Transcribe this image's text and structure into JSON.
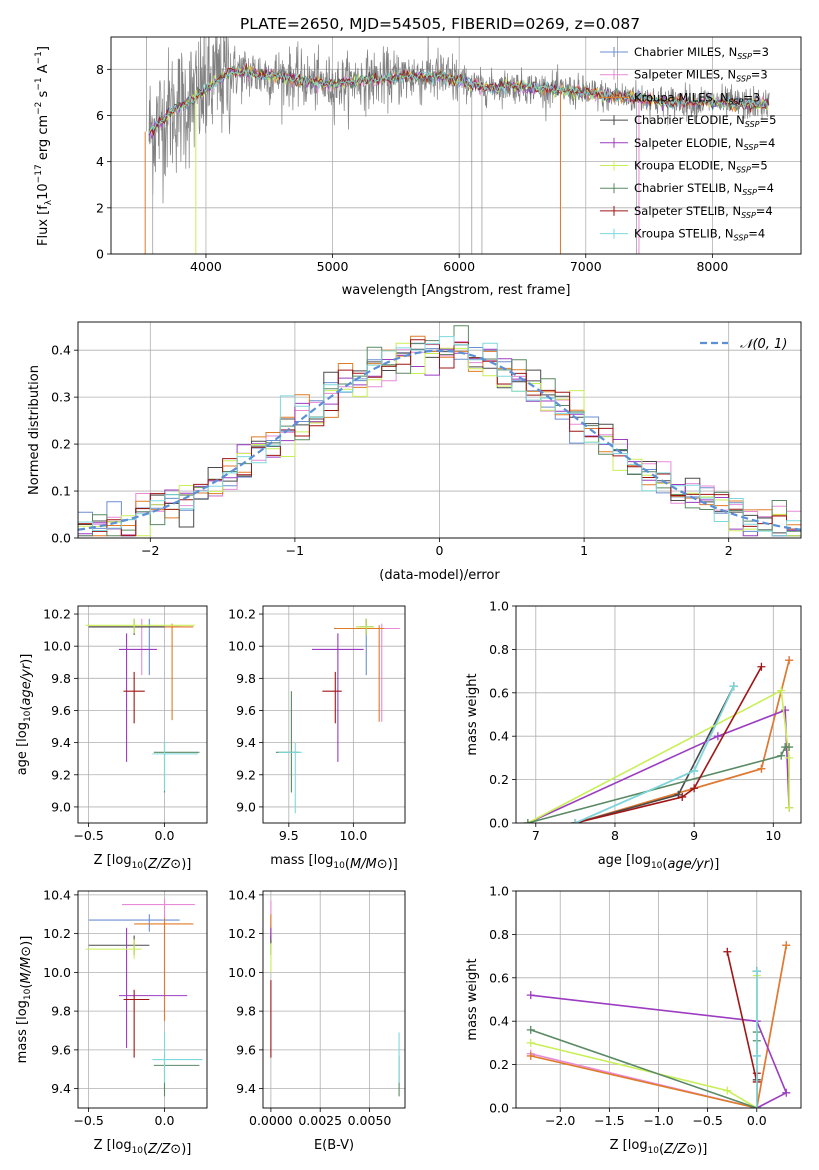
{
  "figure_title": "PLATE=2650, MJD=54505, FIBERID=0269, z=0.087",
  "colors": [
    "#6a8fd0",
    "#e88ad6",
    "#e07b28",
    "#4a4a4a",
    "#9b3cc1",
    "#c9ef57",
    "#5a8a64",
    "#a01616",
    "#7dd9dc"
  ],
  "model_names": [
    "Chabrier MILES, N_SSP=3",
    "Salpeter MILES, N_SSP=3",
    "Kroupa MILES, N_SSP=3",
    "Chabrier ELODIE, N_SSP=5",
    "Salpeter ELODIE, N_SSP=4",
    "Kroupa ELODIE, N_SSP=5",
    "Chabrier STELIB, N_SSP=4",
    "Salpeter STELIB, N_SSP=4",
    "Kroupa STELIB, N_SSP=4"
  ],
  "chart_data": [
    {
      "id": "spectrum",
      "type": "line",
      "xlabel": "wavelength [Angstrom, rest frame]",
      "ylabel_parts": [
        "Flux [f",
        "λ",
        "10",
        "−17",
        " erg cm",
        "−2",
        " s",
        "−1",
        " A",
        "−1",
        "]"
      ],
      "xlim": [
        3250,
        8700
      ],
      "ylim": [
        0,
        9.4
      ],
      "xticks": [
        4000,
        5000,
        6000,
        7000,
        8000
      ],
      "yticks": [
        0,
        2,
        4,
        6,
        8
      ],
      "data_color": "#808080",
      "continuum": {
        "x": [
          3550,
          3600,
          3700,
          3800,
          3900,
          4000,
          4100,
          4200,
          4400,
          4600,
          4800,
          5000,
          5200,
          5400,
          5600,
          5800,
          6000,
          6200,
          6400,
          6600,
          6800,
          7000,
          7200,
          7400,
          7600,
          7800,
          8000,
          8200,
          8400
        ],
        "y": [
          5.3,
          5.5,
          6.1,
          6.4,
          6.7,
          7.1,
          7.6,
          7.9,
          7.8,
          7.7,
          7.5,
          7.3,
          7.5,
          7.6,
          7.7,
          7.7,
          7.5,
          7.2,
          7.3,
          7.2,
          7.1,
          7.0,
          6.8,
          6.8,
          6.6,
          6.6,
          6.6,
          6.5,
          6.5
        ]
      },
      "legend_labels": [
        "Chabrier MILES, N",
        "Salpeter MILES, N",
        "Kroupa MILES, N",
        "Chabrier ELODIE, N",
        "Salpeter ELODIE, N",
        "Kroupa ELODIE, N",
        "Chabrier STELIB, N",
        "Salpeter STELIB, N",
        "Kroupa STELIB, N"
      ],
      "legend_sub": "SSP",
      "legend_vals": [
        "=3",
        "=3",
        "=3",
        "=5",
        "=4",
        "=5",
        "=4",
        "=4",
        "=4"
      ],
      "legend_position": "upper-right"
    },
    {
      "id": "residuals",
      "type": "histogram",
      "xlabel": "(data-model)/error",
      "ylabel": "Normed distribution",
      "xlim": [
        -2.5,
        2.5
      ],
      "ylim": [
        0,
        0.46
      ],
      "xticks": [
        -2,
        -1,
        0,
        1,
        2
      ],
      "yticks": [
        0.0,
        0.1,
        0.2,
        0.3,
        0.4
      ],
      "legend_label": "𝒩(0, 1)",
      "legend_position": "upper-right",
      "curve": "normal(0,1)",
      "bin_width": 0.1
    },
    {
      "id": "age_vs_Z",
      "type": "errorbar",
      "xlabel": "Z [log10(Z/Z⊙)]",
      "ylabel": "age  [log10(age/yr)]",
      "xlim": [
        -0.57,
        0.28
      ],
      "ylim": [
        8.9,
        10.25
      ],
      "xticks": [
        -0.5,
        0.0
      ],
      "yticks": [
        9.0,
        9.2,
        9.4,
        9.6,
        9.8,
        10.0,
        10.2
      ],
      "points": [
        {
          "x": -0.1,
          "xerr": [
            0.4,
            0.2
          ],
          "y": 10.12,
          "yerr": [
            0.3,
            0.05
          ],
          "c": 0
        },
        {
          "x": -0.15,
          "xerr": [
            0.33,
            0.27
          ],
          "y": 10.12,
          "yerr": [
            0.3,
            0.05
          ],
          "c": 1
        },
        {
          "x": 0.05,
          "xerr": [
            0.55,
            0.14
          ],
          "y": 10.12,
          "yerr": [
            0.58,
            0.02
          ],
          "c": 2
        },
        {
          "x": -0.2,
          "xerr": [
            0.3,
            0.2
          ],
          "y": 10.12,
          "yerr": [
            0.05,
            0.05
          ],
          "c": 3
        },
        {
          "x": -0.25,
          "xerr": [
            0.05,
            0.2
          ],
          "y": 9.98,
          "yerr": [
            0.7,
            0.1
          ],
          "c": 4
        },
        {
          "x": -0.2,
          "xerr": [
            0.32,
            0.4
          ],
          "y": 10.13,
          "yerr": [
            0.05,
            0.04
          ],
          "c": 5
        },
        {
          "x": 0.0,
          "xerr": [
            0.07,
            0.23
          ],
          "y": 9.34,
          "yerr": [
            0.25,
            0.06
          ],
          "c": 6
        },
        {
          "x": -0.2,
          "xerr": [
            0.07,
            0.07
          ],
          "y": 9.72,
          "yerr": [
            0.2,
            0.12
          ],
          "c": 7
        },
        {
          "x": 0.0,
          "xerr": [
            0.08,
            0.22
          ],
          "y": 9.33,
          "yerr": [
            0.23,
            0.08
          ],
          "c": 8
        }
      ]
    },
    {
      "id": "age_vs_mass",
      "type": "errorbar",
      "xlabel": "mass [log10(M/M⊙)]",
      "ylabel": "",
      "xlim": [
        9.3,
        10.4
      ],
      "ylim": [
        8.9,
        10.25
      ],
      "xticks": [
        9.5,
        10.0
      ],
      "yticks": [
        9.0,
        9.2,
        9.4,
        9.6,
        9.8,
        10.0,
        10.2
      ],
      "points": [
        {
          "x": 10.1,
          "xerr": [
            0.08,
            0.06
          ],
          "y": 10.12,
          "yerr": [
            0.3,
            0.05
          ],
          "c": 0
        },
        {
          "x": 10.22,
          "xerr": [
            0.1,
            0.14
          ],
          "y": 10.11,
          "yerr": [
            0.58,
            0.03
          ],
          "c": 1
        },
        {
          "x": 10.2,
          "xerr": [
            0.35,
            0.04
          ],
          "y": 10.11,
          "yerr": [
            0.58,
            0.02
          ],
          "c": 2
        },
        {
          "x": 10.1,
          "xerr": [
            0.05,
            0.05
          ],
          "y": 10.12,
          "yerr": [
            0.05,
            0.05
          ],
          "c": 3
        },
        {
          "x": 9.88,
          "xerr": [
            0.2,
            0.2
          ],
          "y": 9.98,
          "yerr": [
            0.7,
            0.1
          ],
          "c": 4
        },
        {
          "x": 10.1,
          "xerr": [
            0.08,
            0.06
          ],
          "y": 10.12,
          "yerr": [
            0.05,
            0.05
          ],
          "c": 5
        },
        {
          "x": 9.52,
          "xerr": [
            0.12,
            0.06
          ],
          "y": 9.34,
          "yerr": [
            0.25,
            0.38
          ],
          "c": 6
        },
        {
          "x": 9.86,
          "xerr": [
            0.1,
            0.05
          ],
          "y": 9.72,
          "yerr": [
            0.2,
            0.12
          ],
          "c": 7
        },
        {
          "x": 9.55,
          "xerr": [
            0.13,
            0.05
          ],
          "y": 9.34,
          "yerr": [
            0.38,
            0.06
          ],
          "c": 8
        }
      ]
    },
    {
      "id": "mw_vs_age",
      "type": "line",
      "xlabel": "age  [log10(age/yr)]",
      "ylabel": "mass weight",
      "xlim": [
        6.75,
        10.35
      ],
      "ylim": [
        0,
        1.0
      ],
      "xticks": [
        7,
        8,
        9,
        10
      ],
      "yticks": [
        0.0,
        0.2,
        0.4,
        0.6,
        0.8,
        1.0
      ],
      "series": [
        {
          "c": 0,
          "x": [
            7.5,
            9.0,
            9.5
          ],
          "y": [
            0.0,
            0.24,
            0.63
          ]
        },
        {
          "c": 1,
          "x": [
            7.5,
            9.85,
            10.2,
            10.2
          ],
          "y": [
            0.0,
            0.25,
            0.75,
            0.75
          ]
        },
        {
          "c": 2,
          "x": [
            7.5,
            9.85,
            10.2
          ],
          "y": [
            0.0,
            0.25,
            0.75
          ]
        },
        {
          "c": 3,
          "x": [
            7.5,
            8.8,
            9.5
          ],
          "y": [
            0.0,
            0.13,
            0.63
          ]
        },
        {
          "c": 4,
          "x": [
            6.9,
            9.3,
            10.15,
            10.2
          ],
          "y": [
            0.0,
            0.4,
            0.52,
            0.07
          ]
        },
        {
          "c": 5,
          "x": [
            6.9,
            10.1,
            10.2,
            10.2
          ],
          "y": [
            0.0,
            0.61,
            0.3,
            0.07
          ]
        },
        {
          "c": 6,
          "x": [
            6.9,
            10.1,
            10.15,
            10.2
          ],
          "y": [
            0.0,
            0.31,
            0.35,
            0.35
          ]
        },
        {
          "c": 7,
          "x": [
            7.5,
            8.85,
            9.0,
            9.85
          ],
          "y": [
            0.0,
            0.12,
            0.16,
            0.72
          ]
        },
        {
          "c": 8,
          "x": [
            7.5,
            9.0,
            9.5
          ],
          "y": [
            0.0,
            0.24,
            0.63
          ]
        }
      ]
    },
    {
      "id": "mass_vs_Z",
      "type": "errorbar",
      "xlabel": "Z [log10(Z/Z⊙)]",
      "ylabel": "mass [log10(M/M⊙)]",
      "xlim": [
        -0.57,
        0.28
      ],
      "ylim": [
        9.3,
        10.42
      ],
      "xticks": [
        -0.5,
        0.0
      ],
      "yticks": [
        9.4,
        9.6,
        9.8,
        10.0,
        10.2,
        10.4
      ],
      "points": [
        {
          "x": -0.1,
          "xerr": [
            0.4,
            0.2
          ],
          "y": 10.27,
          "yerr": [
            0.06,
            0.03
          ],
          "c": 0
        },
        {
          "x": 0.0,
          "xerr": [
            0.28,
            0.2
          ],
          "y": 10.35,
          "yerr": [
            0.6,
            0.03
          ],
          "c": 1
        },
        {
          "x": 0.0,
          "xerr": [
            0.2,
            0.19
          ],
          "y": 10.25,
          "yerr": [
            0.5,
            0.03
          ],
          "c": 2
        },
        {
          "x": -0.2,
          "xerr": [
            0.3,
            0.1
          ],
          "y": 10.14,
          "yerr": [
            0.05,
            0.05
          ],
          "c": 3
        },
        {
          "x": -0.25,
          "xerr": [
            0.05,
            0.4
          ],
          "y": 9.88,
          "yerr": [
            0.27,
            0.35
          ],
          "c": 4
        },
        {
          "x": -0.2,
          "xerr": [
            0.32,
            0.05
          ],
          "y": 10.12,
          "yerr": [
            0.05,
            0.05
          ],
          "c": 5
        },
        {
          "x": 0.0,
          "xerr": [
            0.07,
            0.23
          ],
          "y": 9.52,
          "yerr": [
            0.16,
            0.05
          ],
          "c": 6
        },
        {
          "x": -0.2,
          "xerr": [
            0.07,
            0.1
          ],
          "y": 9.86,
          "yerr": [
            0.3,
            0.05
          ],
          "c": 7
        },
        {
          "x": 0.0,
          "xerr": [
            0.08,
            0.25
          ],
          "y": 9.55,
          "yerr": [
            0.12,
            0.14
          ],
          "c": 8
        }
      ]
    },
    {
      "id": "mass_vs_ebv",
      "type": "errorbar",
      "xlabel": "E(B-V)",
      "ylabel": "",
      "xlim": [
        -0.0004,
        0.0068
      ],
      "ylim": [
        9.3,
        10.42
      ],
      "xticks": [
        0.0,
        0.0025,
        0.005
      ],
      "xticklabels": [
        "0.0000",
        "0.0025",
        "0.0050"
      ],
      "yticks": [
        9.4,
        9.6,
        9.8,
        10.0,
        10.2,
        10.4
      ],
      "points": [
        {
          "x": 0.0,
          "xerr": [
            0,
            0
          ],
          "y": 10.2,
          "yerr": [
            0.05,
            0.05
          ],
          "c": 0
        },
        {
          "x": 0.0,
          "xerr": [
            0,
            0
          ],
          "y": 10.3,
          "yerr": [
            0.1,
            0.07
          ],
          "c": 1
        },
        {
          "x": 0.0,
          "xerr": [
            0,
            0
          ],
          "y": 10.25,
          "yerr": [
            0.1,
            0.05
          ],
          "c": 2
        },
        {
          "x": 0.0,
          "xerr": [
            0,
            0
          ],
          "y": 10.14,
          "yerr": [
            0.05,
            0.05
          ],
          "c": 3
        },
        {
          "x": 0.0,
          "xerr": [
            0,
            0
          ],
          "y": 10.2,
          "yerr": [
            0.03,
            0.03
          ],
          "c": 4
        },
        {
          "x": 0.0,
          "xerr": [
            0,
            0
          ],
          "y": 10.1,
          "yerr": [
            0.1,
            0.05
          ],
          "c": 5
        },
        {
          "x": 0.0065,
          "xerr": [
            0,
            0
          ],
          "y": 9.52,
          "yerr": [
            0.16,
            0.05
          ],
          "c": 6
        },
        {
          "x": 0.0,
          "xerr": [
            0,
            0
          ],
          "y": 9.86,
          "yerr": [
            0.3,
            0.1
          ],
          "c": 7
        },
        {
          "x": 0.0065,
          "xerr": [
            0,
            0
          ],
          "y": 9.55,
          "yerr": [
            0.12,
            0.14
          ],
          "c": 8
        }
      ]
    },
    {
      "id": "mw_vs_Z",
      "type": "line",
      "xlabel": "Z [log10(Z/Z⊙)]",
      "ylabel": "mass weight",
      "xlim": [
        -2.45,
        0.45
      ],
      "ylim": [
        0,
        1.0
      ],
      "xticks": [
        -2.0,
        -1.5,
        -1.0,
        -0.5,
        0.0
      ],
      "yticks": [
        0.0,
        0.2,
        0.4,
        0.6,
        0.8,
        1.0
      ],
      "series": [
        {
          "c": 0,
          "x": [
            0.0,
            0.0,
            0.0
          ],
          "y": [
            0.0,
            0.24,
            0.63
          ]
        },
        {
          "c": 1,
          "x": [
            -2.3,
            0.0,
            0.3
          ],
          "y": [
            0.25,
            0.0,
            0.75
          ]
        },
        {
          "c": 2,
          "x": [
            -2.3,
            0.0,
            0.3
          ],
          "y": [
            0.24,
            0.0,
            0.75
          ]
        },
        {
          "c": 3,
          "x": [
            0.0,
            0.0,
            0.0
          ],
          "y": [
            0.0,
            0.13,
            0.63
          ]
        },
        {
          "c": 4,
          "x": [
            -2.3,
            0.0,
            0.3,
            0.0
          ],
          "y": [
            0.52,
            0.4,
            0.07,
            0.0
          ]
        },
        {
          "c": 5,
          "x": [
            -2.3,
            -0.3,
            0.0,
            0.0
          ],
          "y": [
            0.3,
            0.08,
            0.0,
            0.61
          ]
        },
        {
          "c": 6,
          "x": [
            -2.3,
            0.0,
            0.0,
            0.0
          ],
          "y": [
            0.36,
            0.0,
            0.31,
            0.35
          ]
        },
        {
          "c": 7,
          "x": [
            -0.3,
            0.0,
            0.0,
            0.0
          ],
          "y": [
            0.72,
            0.12,
            0.16,
            0.0
          ]
        },
        {
          "c": 8,
          "x": [
            0.0,
            0.0,
            0.0
          ],
          "y": [
            0.0,
            0.24,
            0.63
          ]
        }
      ]
    }
  ]
}
